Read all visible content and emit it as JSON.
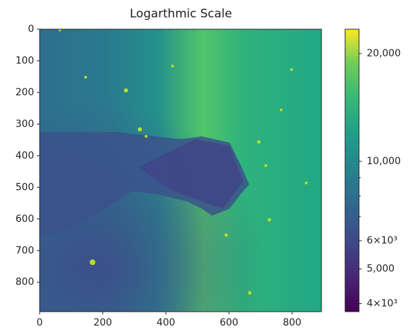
{
  "chart_data": {
    "type": "image",
    "title": "Logarthmic Scale",
    "xlim": [
      0,
      893
    ],
    "xticks": [
      0,
      200,
      400,
      600,
      800
    ],
    "ylim": [
      893,
      0
    ],
    "yticks": [
      0,
      100,
      200,
      300,
      400,
      500,
      600,
      700,
      800
    ],
    "colorbar": {
      "scale": "log",
      "colormap": "viridis",
      "lim": [
        3800,
        23400
      ],
      "ticks": [
        {
          "value": 4000,
          "label": "4×10³"
        },
        {
          "value": 5000,
          "label": "5,000"
        },
        {
          "value": 6000,
          "label": "6×10³"
        },
        {
          "value": 10000,
          "label": "10,000"
        },
        {
          "value": 20000,
          "label": "20,000"
        }
      ],
      "minor_ticks": [
        7000,
        8000,
        9000
      ]
    }
  }
}
